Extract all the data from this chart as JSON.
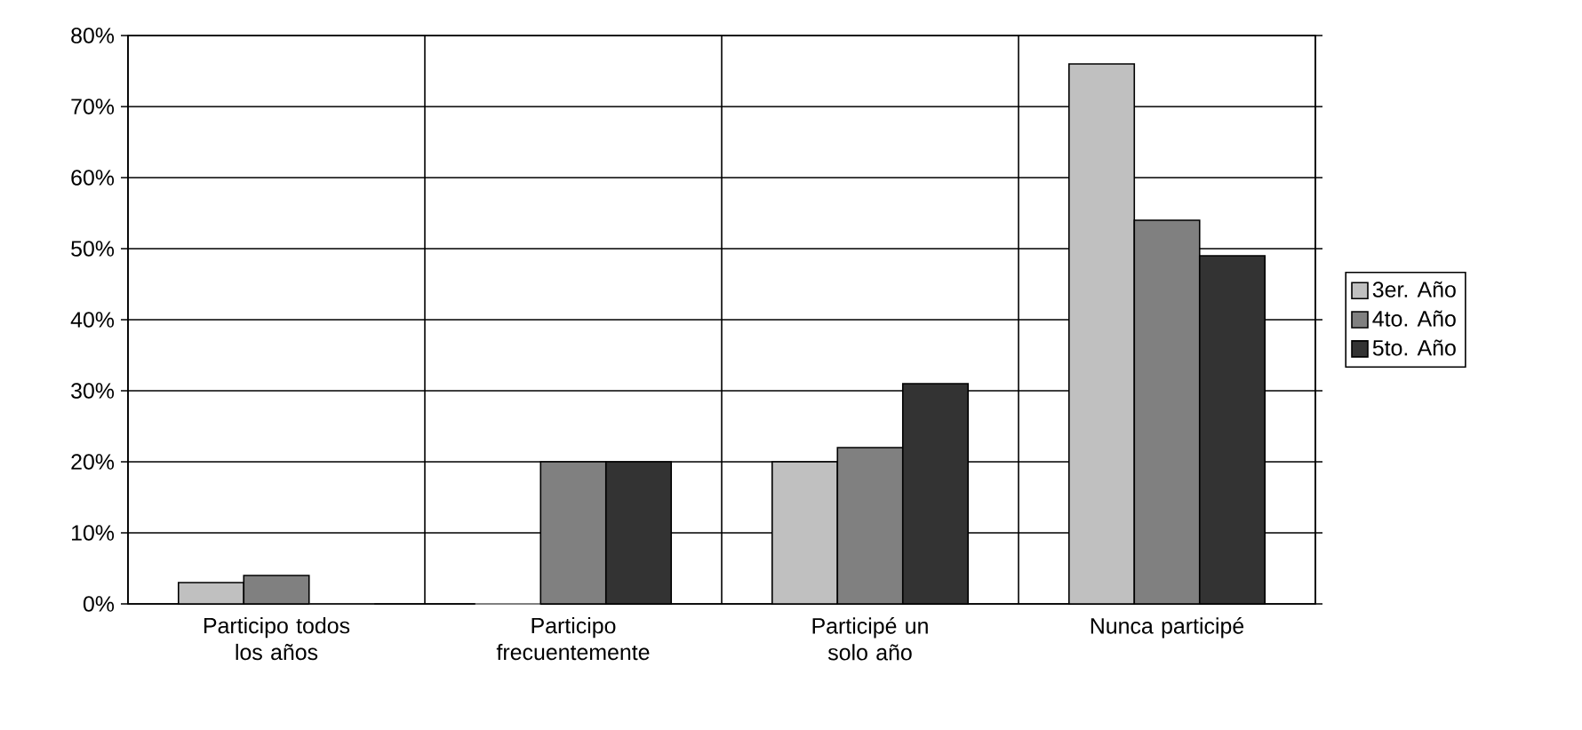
{
  "chart_data": {
    "type": "bar",
    "categories": [
      "Participo todos los años",
      "Participo frecuentemente",
      "Participé un solo año",
      "Nunca participé"
    ],
    "series": [
      {
        "name": "3er. Año",
        "color": "#c0c0c0",
        "values": [
          3,
          0,
          20,
          76
        ]
      },
      {
        "name": "4to. Año",
        "color": "#808080",
        "values": [
          4,
          20,
          22,
          54
        ]
      },
      {
        "name": "5to. Año",
        "color": "#333333",
        "values": [
          0,
          20,
          31,
          49
        ]
      }
    ],
    "ylim": [
      0,
      80
    ],
    "yticks": [
      {
        "value": 0,
        "label": "0%"
      },
      {
        "value": 10,
        "label": "10%"
      },
      {
        "value": 20,
        "label": "20%"
      },
      {
        "value": 30,
        "label": "30%"
      },
      {
        "value": 40,
        "label": "40%"
      },
      {
        "value": 50,
        "label": "50%"
      },
      {
        "value": 60,
        "label": "60%"
      },
      {
        "value": 70,
        "label": "70%"
      },
      {
        "value": 80,
        "label": "80%"
      }
    ],
    "grid": true,
    "legend": "right"
  }
}
